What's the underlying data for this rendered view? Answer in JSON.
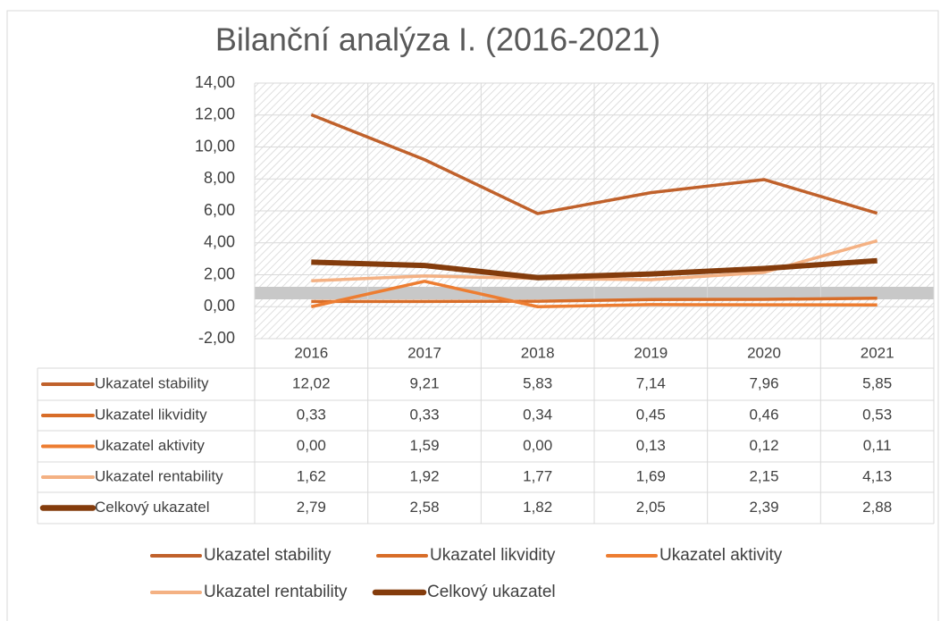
{
  "chart_data": {
    "type": "line",
    "title": "Bilanční analýza I. (2016-2021)",
    "categories": [
      "2016",
      "2017",
      "2018",
      "2019",
      "2020",
      "2021"
    ],
    "ylim": [
      -2,
      14
    ],
    "yticks": [
      {
        "value": -2,
        "label": "-2,00"
      },
      {
        "value": 0,
        "label": "0,00"
      },
      {
        "value": 2,
        "label": "2,00"
      },
      {
        "value": 4,
        "label": "4,00"
      },
      {
        "value": 6,
        "label": "6,00"
      },
      {
        "value": 8,
        "label": "8,00"
      },
      {
        "value": 10,
        "label": "10,00"
      },
      {
        "value": 12,
        "label": "12,00"
      },
      {
        "value": 14,
        "label": "14,00"
      }
    ],
    "grid": true,
    "series": [
      {
        "name": "Ukazatel stability",
        "color": "#c0612b",
        "values": [
          12.02,
          9.21,
          5.83,
          7.14,
          7.96,
          5.85
        ],
        "value_labels": [
          "12,02",
          "9,21",
          "5,83",
          "7,14",
          "7,96",
          "5,85"
        ]
      },
      {
        "name": "Ukazatel likvidity",
        "color": "#d86d28",
        "values": [
          0.33,
          0.33,
          0.34,
          0.45,
          0.46,
          0.53
        ],
        "value_labels": [
          "0,33",
          "0,33",
          "0,34",
          "0,45",
          "0,46",
          "0,53"
        ]
      },
      {
        "name": "Ukazatel aktivity",
        "color": "#ed7d31",
        "values": [
          0.0,
          1.59,
          0.0,
          0.13,
          0.12,
          0.11
        ],
        "value_labels": [
          "0,00",
          "1,59",
          "0,00",
          "0,13",
          "0,12",
          "0,11"
        ]
      },
      {
        "name": "Ukazatel rentability",
        "color": "#f4b183",
        "values": [
          1.62,
          1.92,
          1.77,
          1.69,
          2.15,
          4.13
        ],
        "value_labels": [
          "1,62",
          "1,92",
          "1,77",
          "1,69",
          "2,15",
          "4,13"
        ]
      },
      {
        "name": "Celkový ukazatel",
        "color": "#843c0c",
        "values": [
          2.79,
          2.58,
          1.82,
          2.05,
          2.39,
          2.88
        ],
        "value_labels": [
          "2,79",
          "2,58",
          "1,82",
          "2,05",
          "2,39",
          "2,88"
        ]
      }
    ]
  }
}
